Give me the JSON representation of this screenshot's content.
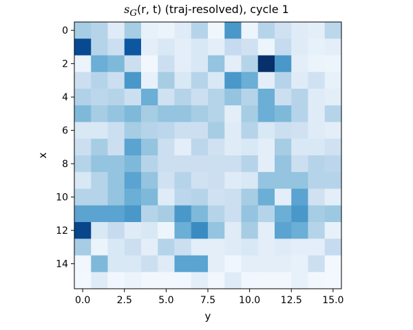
{
  "chart_data": {
    "type": "heatmap",
    "title_parts": {
      "pre": "s",
      "sub": "G",
      "args": "(r, t)",
      "rest": " (traj-resolved), cycle 1"
    },
    "xlabel": "y",
    "ylabel": "x",
    "x_ticks": [
      "0.0",
      "2.5",
      "5.0",
      "7.5",
      "10.0",
      "12.5",
      "15.0"
    ],
    "y_ticks": [
      "0",
      "2",
      "4",
      "6",
      "8",
      "10",
      "12",
      "14"
    ],
    "x_tick_values": [
      0,
      2.5,
      5,
      7.5,
      10,
      12.5,
      15
    ],
    "y_tick_values": [
      0,
      2,
      4,
      6,
      8,
      10,
      12,
      14
    ],
    "colormap": "Blues",
    "rows": 16,
    "cols": 16,
    "values": [
      [
        0.35,
        0.3,
        0.12,
        0.35,
        0.08,
        0.06,
        0.12,
        0.3,
        0.04,
        0.6,
        0.05,
        0.3,
        0.2,
        0.12,
        0.1,
        0.28
      ],
      [
        0.9,
        0.3,
        0.22,
        0.85,
        0.1,
        0.15,
        0.1,
        0.15,
        0.1,
        0.25,
        0.2,
        0.05,
        0.25,
        0.12,
        0.08,
        0.1
      ],
      [
        0.06,
        0.5,
        0.45,
        0.22,
        0.03,
        0.22,
        0.1,
        0.15,
        0.4,
        0.1,
        0.3,
        1.0,
        0.6,
        0.1,
        0.06,
        0.05
      ],
      [
        0.22,
        0.3,
        0.22,
        0.6,
        0.08,
        0.35,
        0.15,
        0.3,
        0.15,
        0.6,
        0.5,
        0.1,
        0.3,
        0.12,
        0.2,
        0.08
      ],
      [
        0.32,
        0.28,
        0.3,
        0.22,
        0.5,
        0.2,
        0.3,
        0.22,
        0.3,
        0.4,
        0.3,
        0.5,
        0.22,
        0.3,
        0.12,
        0.1
      ],
      [
        0.45,
        0.35,
        0.4,
        0.45,
        0.35,
        0.4,
        0.4,
        0.35,
        0.3,
        0.1,
        0.35,
        0.5,
        0.45,
        0.3,
        0.12,
        0.3
      ],
      [
        0.15,
        0.15,
        0.22,
        0.35,
        0.3,
        0.28,
        0.22,
        0.22,
        0.35,
        0.12,
        0.3,
        0.15,
        0.22,
        0.2,
        0.12,
        0.1
      ],
      [
        0.22,
        0.35,
        0.22,
        0.55,
        0.4,
        0.22,
        0.1,
        0.28,
        0.2,
        0.12,
        0.15,
        0.1,
        0.35,
        0.15,
        0.15,
        0.2
      ],
      [
        0.3,
        0.4,
        0.4,
        0.45,
        0.3,
        0.22,
        0.22,
        0.22,
        0.22,
        0.22,
        0.3,
        0.1,
        0.4,
        0.22,
        0.3,
        0.28
      ],
      [
        0.15,
        0.3,
        0.4,
        0.55,
        0.4,
        0.2,
        0.3,
        0.2,
        0.22,
        0.12,
        0.15,
        0.4,
        0.4,
        0.4,
        0.3,
        0.3
      ],
      [
        0.3,
        0.3,
        0.4,
        0.5,
        0.45,
        0.12,
        0.28,
        0.3,
        0.2,
        0.22,
        0.35,
        0.5,
        0.1,
        0.55,
        0.2,
        0.1
      ],
      [
        0.55,
        0.55,
        0.55,
        0.6,
        0.3,
        0.35,
        0.6,
        0.45,
        0.3,
        0.22,
        0.4,
        0.3,
        0.5,
        0.6,
        0.35,
        0.38
      ],
      [
        0.92,
        0.15,
        0.25,
        0.12,
        0.15,
        0.05,
        0.5,
        0.65,
        0.4,
        0.12,
        0.35,
        0.1,
        0.55,
        0.5,
        0.3,
        0.08
      ],
      [
        0.35,
        0.06,
        0.15,
        0.22,
        0.1,
        0.3,
        0.22,
        0.1,
        0.1,
        0.12,
        0.15,
        0.1,
        0.12,
        0.1,
        0.1,
        0.25
      ],
      [
        0.03,
        0.45,
        0.15,
        0.15,
        0.22,
        0.12,
        0.55,
        0.55,
        0.1,
        0.04,
        0.1,
        0.1,
        0.1,
        0.08,
        0.22,
        0.02
      ],
      [
        0.02,
        0.12,
        0.03,
        0.06,
        0.03,
        0.03,
        0.03,
        0.1,
        0.03,
        0.12,
        0.03,
        0.03,
        0.03,
        0.08,
        0.03,
        0.02
      ]
    ]
  }
}
